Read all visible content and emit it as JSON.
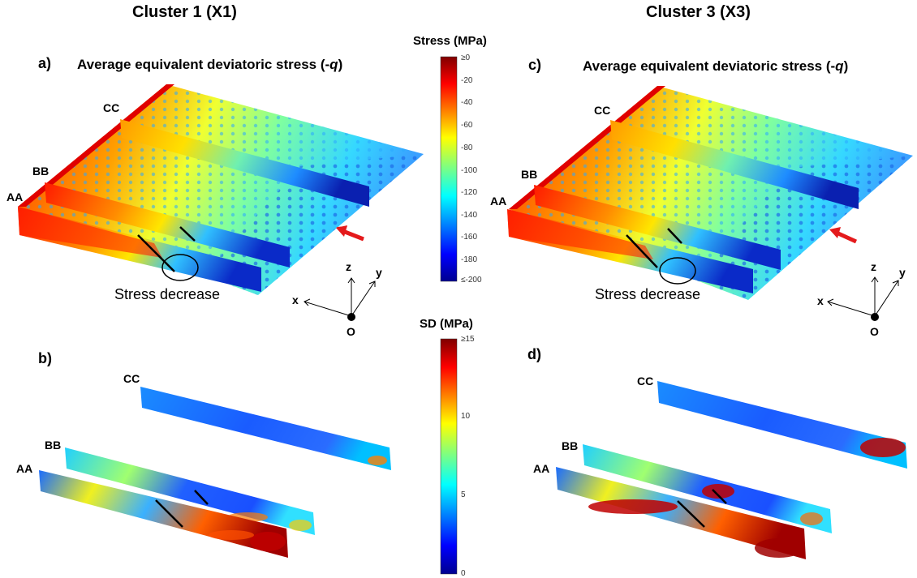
{
  "clusters": [
    {
      "title": "Cluster 1 (X1)"
    },
    {
      "title": "Cluster 3 (X3)"
    }
  ],
  "panels": {
    "a": {
      "letter": "a)",
      "title": "Average equivalent deviatoric stress (-",
      "title_var": "q",
      "title_end": ")"
    },
    "b": {
      "letter": "b)"
    },
    "c": {
      "letter": "c)",
      "title": "Average equivalent deviatoric stress (-",
      "title_var": "q",
      "title_end": ")"
    },
    "d": {
      "letter": "d)"
    }
  },
  "sections": {
    "aa": "AA",
    "bb": "BB",
    "cc": "CC"
  },
  "annotation": "Stress decrease",
  "axes": {
    "x": "x",
    "y": "y",
    "z": "z",
    "origin": "O"
  },
  "stress_colorbar": {
    "title": "Stress (MPa)",
    "ticks": [
      "≥0",
      "-20",
      "-40",
      "-60",
      "-80",
      "-100",
      "-120",
      "-140",
      "-160",
      "-180",
      "≤-200"
    ]
  },
  "sd_colorbar": {
    "title": "SD (MPa)",
    "ticks": [
      "≥15",
      "10",
      "5",
      "0"
    ]
  },
  "colors": {
    "arrow": "#e41a1c",
    "jet_low": "#00008f",
    "jet_high": "#800000"
  }
}
